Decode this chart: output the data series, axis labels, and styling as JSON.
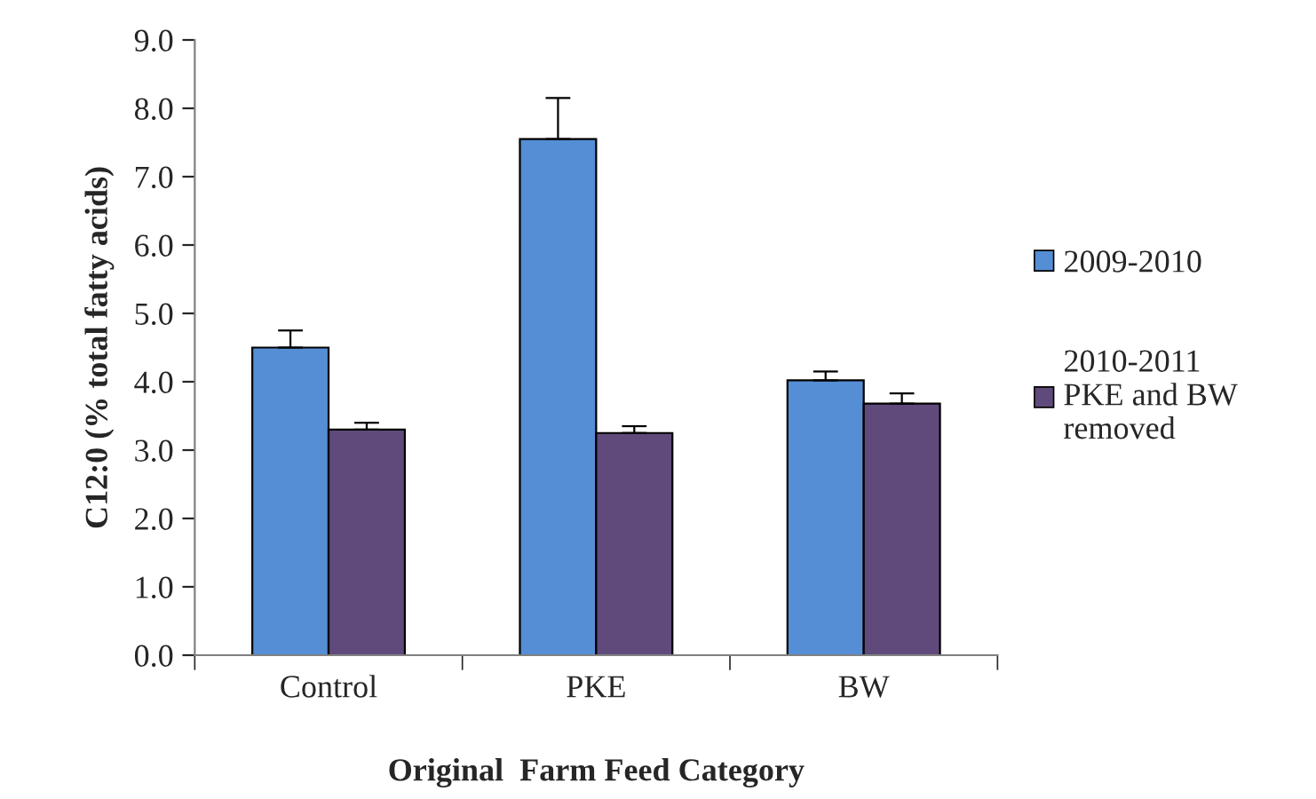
{
  "chart_data": {
    "type": "bar",
    "xlabel": "Original  Farm Feed Category",
    "ylabel": "C12:0 (% total fatty acids)",
    "categories": [
      "Control",
      "PKE",
      "BW"
    ],
    "series": [
      {
        "name": "2009-2010",
        "color": "#558ed5",
        "values": [
          4.5,
          7.55,
          4.02
        ],
        "errors": [
          [
            4.5,
            4.75
          ],
          [
            7.55,
            8.15
          ],
          [
            4.02,
            4.15
          ]
        ]
      },
      {
        "name": "2010-2011\nPKE and BW\nremoved",
        "color": "#604a7b",
        "values": [
          3.3,
          3.25,
          3.68
        ],
        "errors": [
          [
            3.3,
            3.4
          ],
          [
            3.25,
            3.35
          ],
          [
            3.68,
            3.83
          ]
        ]
      }
    ],
    "ylim": [
      0,
      9
    ],
    "yticks": [
      {
        "value": 0,
        "label": "0.0"
      },
      {
        "value": 1,
        "label": "1.0"
      },
      {
        "value": 2,
        "label": "2.0"
      },
      {
        "value": 3,
        "label": "3.0"
      },
      {
        "value": 4,
        "label": "4.0"
      },
      {
        "value": 5,
        "label": "5.0"
      },
      {
        "value": 6,
        "label": "6.0"
      },
      {
        "value": 7,
        "label": "7.0"
      },
      {
        "value": 8,
        "label": "8.0"
      },
      {
        "value": 9,
        "label": "9.0"
      }
    ],
    "grid": false,
    "legend": "right"
  }
}
